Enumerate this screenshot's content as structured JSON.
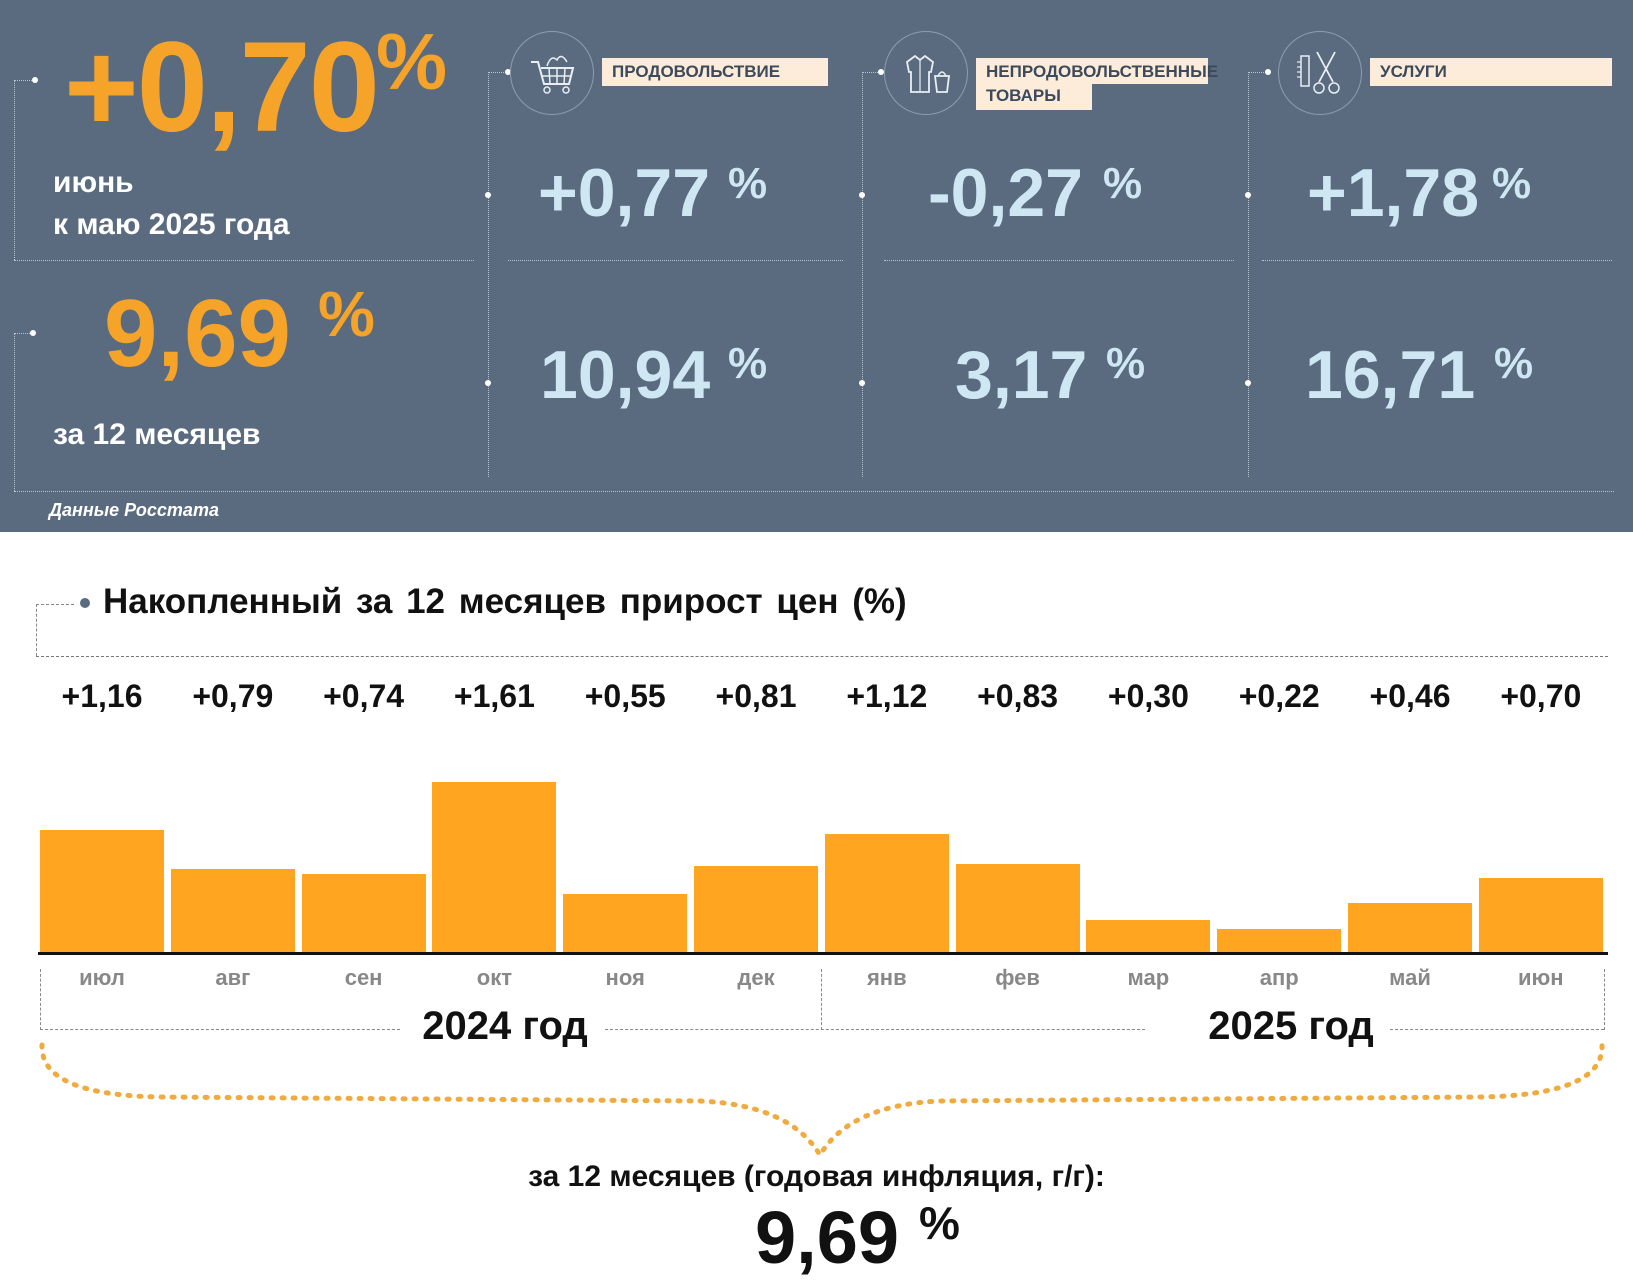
{
  "summary": {
    "monthly_value": "+0,70",
    "percent_sign": "%",
    "monthly_caption_line1": "июнь",
    "monthly_caption_line2": "к маю 2025 года",
    "annual_value": "9,69",
    "annual_caption": "за 12 месяцев",
    "source": "Данные Росстата"
  },
  "categories": [
    {
      "label": "ПРОДОВОЛЬСТВИЕ",
      "icon": "shopping-cart-icon",
      "monthly": "+0,77",
      "annual": "10,94"
    },
    {
      "label_line1": "НЕПРОДОВОЛЬСТВЕННЫЕ",
      "label_line2": "ТОВАРЫ",
      "icon": "clothing-icon",
      "monthly": "-0,27",
      "annual": "3,17"
    },
    {
      "label": "УСЛУГИ",
      "icon": "comb-scissors-icon",
      "monthly": "+1,78",
      "annual": "16,71"
    }
  ],
  "colors": {
    "panel": "#5a6b80",
    "orange": "#f6a32a",
    "bar": "#ffa51f",
    "light_blue": "#cfe6f3"
  },
  "chart_title": "Накопленный за 12 месяцев прирост цен (%)",
  "chart_data": {
    "type": "bar",
    "categories": [
      "июл",
      "авг",
      "сен",
      "окт",
      "ноя",
      "дек",
      "янв",
      "фев",
      "мар",
      "апр",
      "май",
      "июн"
    ],
    "values": [
      1.16,
      0.79,
      0.74,
      1.61,
      0.55,
      0.81,
      1.12,
      0.83,
      0.3,
      0.22,
      0.46,
      0.7
    ],
    "value_labels": [
      "+1,16",
      "+0,79",
      "+0,74",
      "+1,61",
      "+0,55",
      "+0,81",
      "+1,12",
      "+0,83",
      "+0,30",
      "+0,22",
      "+0,46",
      "+0,70"
    ],
    "year_groups": [
      "2024 год",
      "2025 год"
    ],
    "ylim": [
      0,
      1.61
    ]
  },
  "footer": {
    "caption": "за 12 месяцев (годовая инфляция, г/г):",
    "value": "9,69",
    "percent_sign": "%"
  }
}
